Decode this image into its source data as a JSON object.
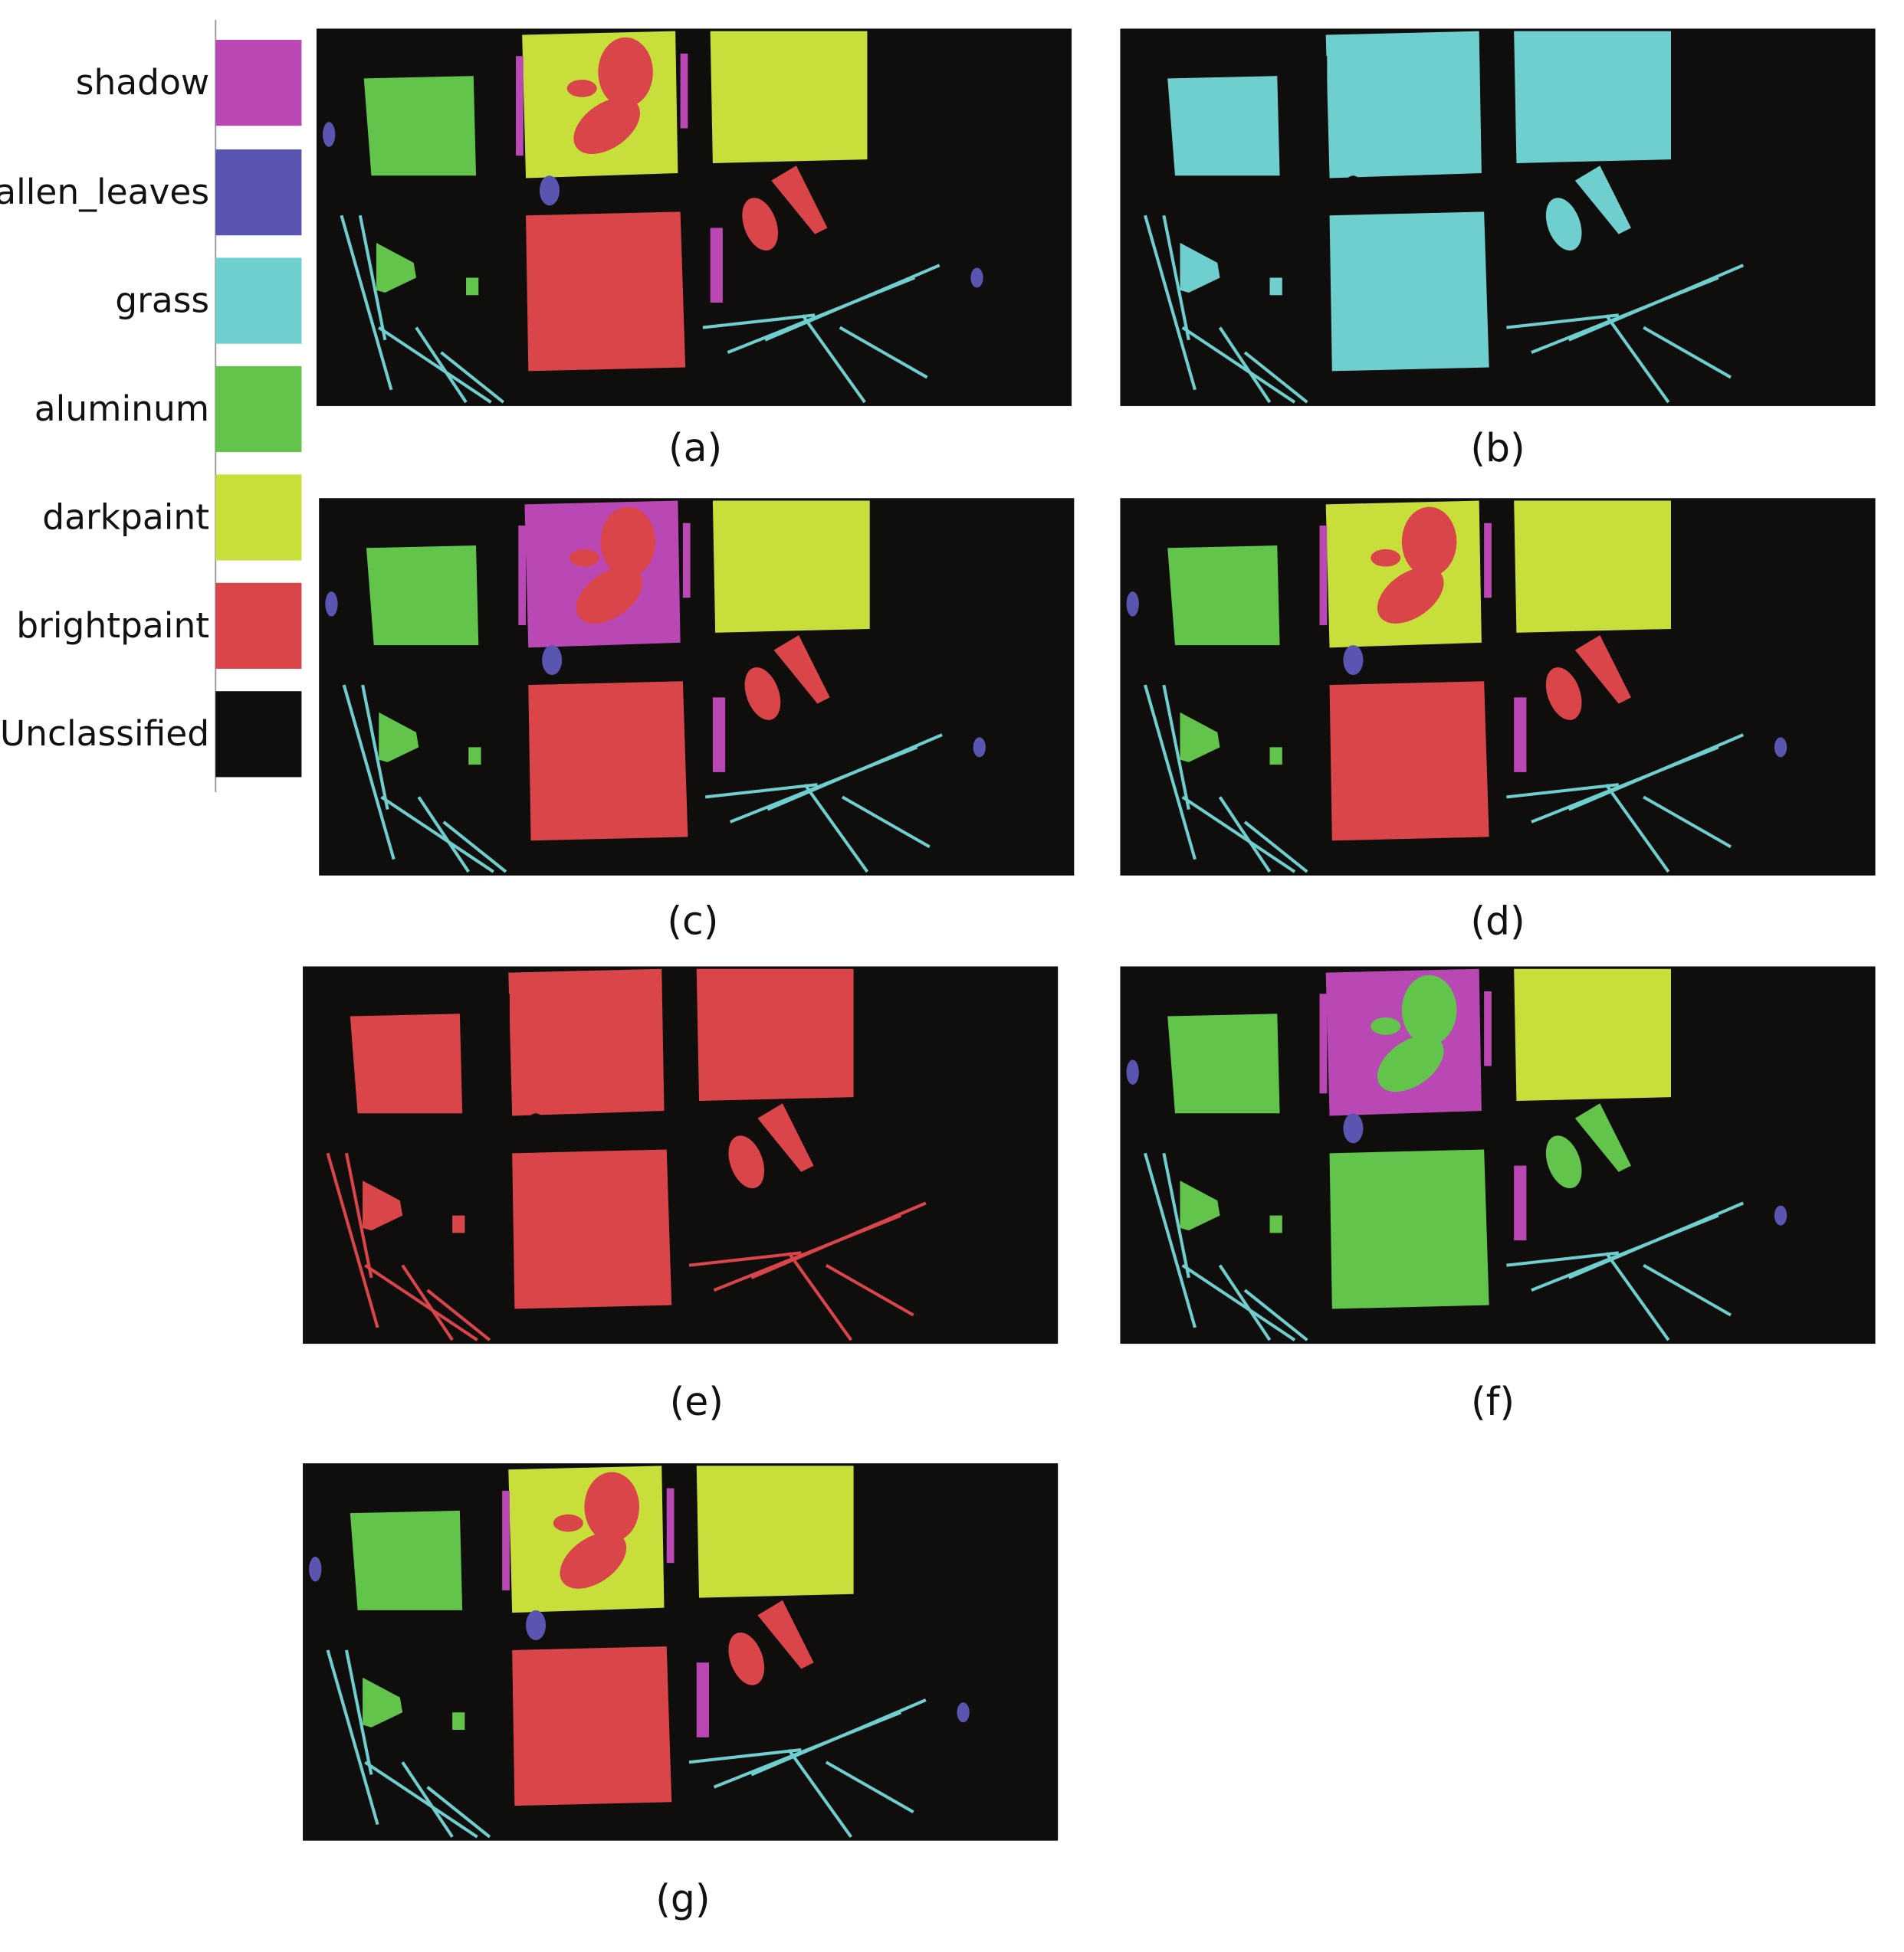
{
  "legend": [
    {
      "label": "shadow",
      "color": "#b948b4"
    },
    {
      "label": "fallen_leaves",
      "color": "#5a55b0"
    },
    {
      "label": "grass",
      "color": "#6fcfcf"
    },
    {
      "label": "aluminum",
      "color": "#62c44a"
    },
    {
      "label": "darkpaint",
      "color": "#c8df3b"
    },
    {
      "label": "brightpaint",
      "color": "#da454a"
    },
    {
      "label": "Unclassified",
      "color": "#0f0e0d"
    }
  ],
  "panels": [
    {
      "label": "(a)"
    },
    {
      "label": "(b)"
    },
    {
      "label": "(c)"
    },
    {
      "label": "(d)"
    },
    {
      "label": "(e)"
    },
    {
      "label": "(f)"
    },
    {
      "label": "(g)"
    }
  ]
}
